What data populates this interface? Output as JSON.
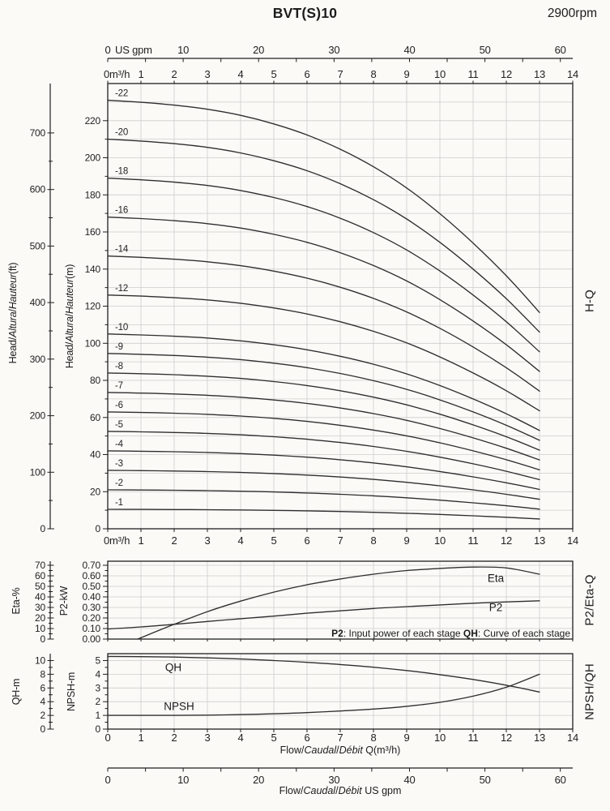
{
  "header": {
    "title": "BVT(S)10",
    "rpm": "2900rpm"
  },
  "axis_names": {
    "head_ft": {
      "p1": "Head/",
      "i1": "Altura",
      "p2": "/",
      "i2": "Hauteur",
      "p3": "(ft)"
    },
    "head_m": {
      "p1": "Head/",
      "i1": "Altura",
      "p2": "/",
      "i2": "Hauteur",
      "p3": "(m)"
    },
    "eta": "Eta-%",
    "p2": "P2-kW",
    "qh": "QH-m",
    "npsh": "NPSH-m",
    "right_main": "H-Q",
    "right_mid": "P2/Eta-Q",
    "right_bot": "NPSH/QH"
  },
  "flow_titles": {
    "mh": {
      "p1": "Flow/",
      "i1": "Caudal",
      "p2": "/",
      "i2": "Débit",
      "p3": " Q(m³/h)"
    },
    "gpm": {
      "p1": "Flow/",
      "i1": "Caudal",
      "p2": "/",
      "i2": "Débit",
      "p3": "  US gpm"
    }
  },
  "note": {
    "b1": "P2",
    "t1": ": Input power of each stage ",
    "b2": "QH",
    "t2": ": Curve of each stage"
  },
  "curve_labels": {
    "eta": "Eta",
    "p2": "P2",
    "qh": "QH",
    "npsh": "NPSH"
  },
  "colors": {
    "ink": "#1f1f1f",
    "grid": "#cdcdcd",
    "curve": "#2e2e2e"
  },
  "chart_data": [
    {
      "id": "hq",
      "type": "line",
      "title": "H-Q",
      "x_unit": "m³/h",
      "x_range": [
        0,
        14
      ],
      "x_ticks_mh": [
        0,
        1,
        2,
        3,
        4,
        5,
        6,
        7,
        8,
        9,
        10,
        11,
        12,
        13,
        14
      ],
      "mh_zero_label": "0m³/h",
      "x_ticks_gpm": [
        0,
        10,
        20,
        30,
        40,
        50,
        60
      ],
      "gpm_minor_step": 5,
      "gpm_zero_label": "0",
      "gpm_unit_label": "US gpm",
      "y_axis_m": {
        "range": [
          0,
          240
        ],
        "ticks": [
          0,
          20,
          40,
          60,
          80,
          100,
          120,
          140,
          160,
          180,
          200,
          220
        ],
        "minor_step": 10,
        "grid_step": 10
      },
      "y_axis_ft": {
        "range": [
          0,
          735
        ],
        "ticks": [
          0,
          100,
          200,
          300,
          400,
          500,
          600,
          700
        ],
        "minor_step": 50
      },
      "stages": [
        1,
        2,
        3,
        4,
        5,
        6,
        7,
        8,
        9,
        10,
        12,
        14,
        16,
        18,
        20,
        22
      ],
      "curve_label_prefix": "-",
      "single_stage_x": [
        0,
        1,
        2,
        3,
        4,
        5,
        6,
        7,
        8,
        9,
        10,
        11,
        12,
        13
      ],
      "single_stage_head_m": [
        10.5,
        10.45,
        10.38,
        10.28,
        10.13,
        9.92,
        9.65,
        9.3,
        8.87,
        8.35,
        7.72,
        7.0,
        6.2,
        5.3
      ]
    },
    {
      "id": "p2eta",
      "type": "line",
      "title": "P2/Eta-Q",
      "x_range": [
        0,
        14
      ],
      "eta_axis": {
        "label": "Eta-%",
        "range": [
          0,
          70
        ],
        "ticks": [
          0,
          10,
          20,
          30,
          40,
          50,
          60,
          70
        ],
        "minor_step": 5
      },
      "p2_axis": {
        "label": "P2-kW",
        "range": [
          0,
          0.7
        ],
        "ticks": [
          0,
          0.1,
          0.2,
          0.3,
          0.4,
          0.5,
          0.6,
          0.7
        ],
        "minor_step": 0.05,
        "decimals": 2
      },
      "series": [
        {
          "name": "Eta",
          "axis": "eta",
          "x": [
            0.9,
            2,
            3,
            4,
            5,
            6,
            7,
            8,
            9,
            10,
            11,
            12,
            13
          ],
          "values": [
            0,
            14,
            26,
            36,
            44.5,
            51.5,
            57,
            61.5,
            65,
            67,
            68.3,
            67.5,
            61.5
          ]
        },
        {
          "name": "P2",
          "axis": "p2",
          "x": [
            0,
            1,
            2,
            3,
            4,
            5,
            6,
            7,
            8,
            9,
            10,
            11,
            12,
            13
          ],
          "values": [
            0.095,
            0.115,
            0.14,
            0.167,
            0.193,
            0.218,
            0.245,
            0.268,
            0.29,
            0.308,
            0.324,
            0.34,
            0.352,
            0.363
          ]
        }
      ]
    },
    {
      "id": "npshqh",
      "type": "line",
      "title": "NPSH/QH",
      "x_range": [
        0,
        14
      ],
      "x_ticks": [
        0,
        1,
        2,
        3,
        4,
        5,
        6,
        7,
        8,
        9,
        10,
        11,
        12,
        13,
        14
      ],
      "x_ticks_gpm": [
        0,
        10,
        20,
        30,
        40,
        50,
        60
      ],
      "gpm_minor_step": 5,
      "qh_axis": {
        "label": "QH-m",
        "range": [
          0,
          11
        ],
        "ticks": [
          0,
          2,
          4,
          6,
          8,
          10
        ],
        "minor_step": 1
      },
      "npsh_axis": {
        "label": "NPSH-m",
        "range": [
          0,
          5.5
        ],
        "ticks": [
          0,
          1,
          2,
          3,
          4,
          5
        ],
        "minor_step": 0.5,
        "grid_step": 1
      },
      "series": [
        {
          "name": "QH",
          "axis": "qh",
          "unit": "m",
          "x": [
            0,
            1,
            2,
            3,
            4,
            5,
            6,
            7,
            8,
            9,
            10,
            11,
            12,
            13
          ],
          "values": [
            10.6,
            10.56,
            10.5,
            10.38,
            10.22,
            10.0,
            9.74,
            9.42,
            9.02,
            8.54,
            7.94,
            7.24,
            6.4,
            5.4
          ]
        },
        {
          "name": "NPSH",
          "axis": "npsh",
          "unit": "m",
          "x": [
            0,
            1,
            2,
            3,
            4,
            5,
            6,
            7,
            8,
            9,
            10,
            11,
            12,
            13
          ],
          "values": [
            1.0,
            1.0,
            1.0,
            1.02,
            1.06,
            1.12,
            1.2,
            1.32,
            1.46,
            1.66,
            1.95,
            2.4,
            3.05,
            4.0
          ]
        }
      ]
    }
  ]
}
